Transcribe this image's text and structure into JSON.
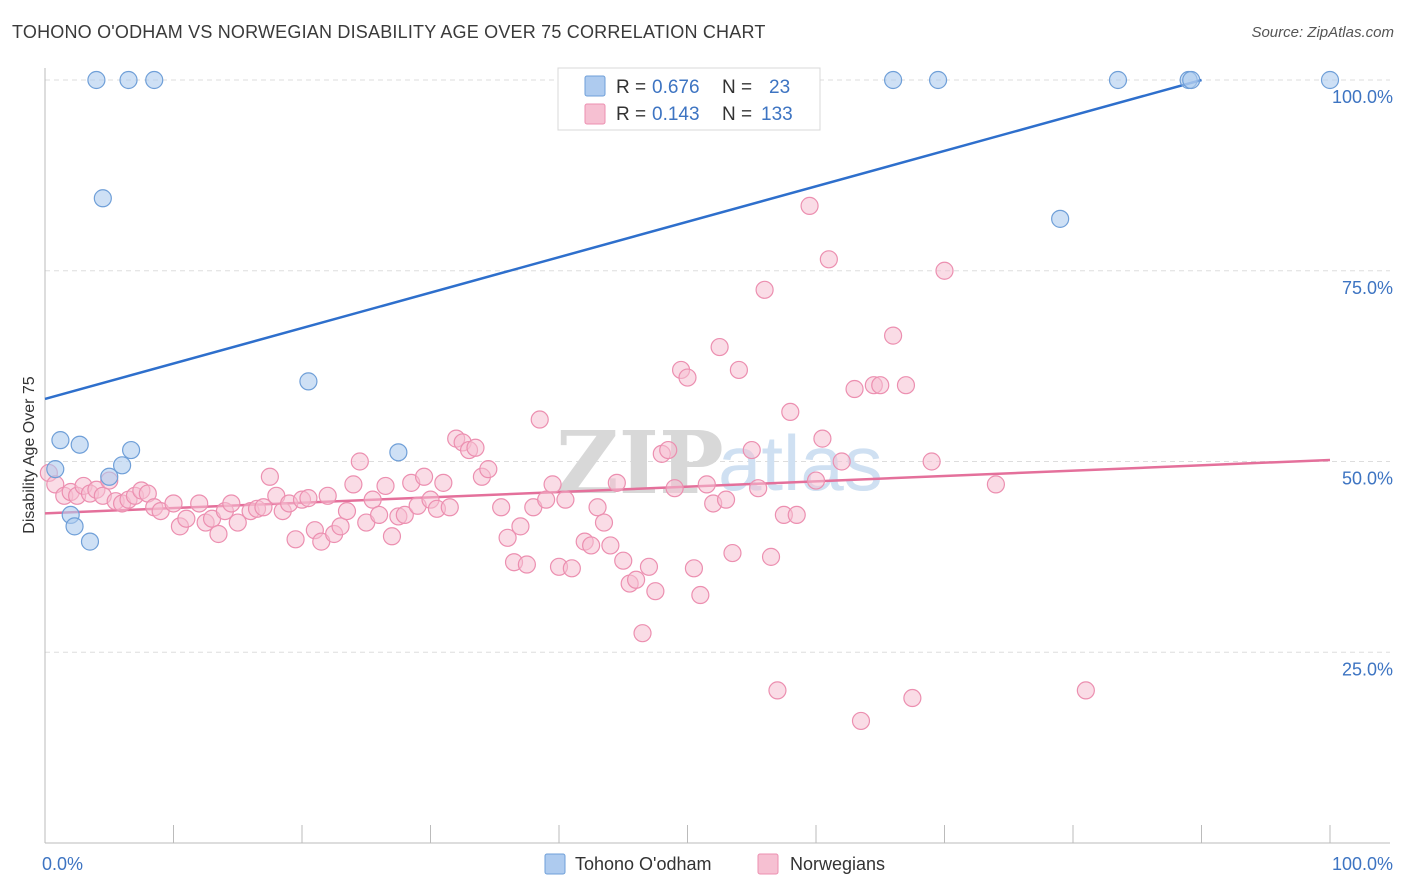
{
  "title": "TOHONO O'ODHAM VS NORWEGIAN DISABILITY AGE OVER 75 CORRELATION CHART",
  "source": "Source: ZipAtlas.com",
  "watermark": {
    "zip": "ZIP",
    "atlas": "atlas"
  },
  "legend": {
    "r_label": "R =",
    "n_label": "N =",
    "rows": [
      {
        "r": "0.676",
        "n": "23"
      },
      {
        "r": "0.143",
        "n": "133"
      }
    ]
  },
  "bottom_legend": [
    "Tohono O'odham",
    "Norwegians"
  ],
  "colors": {
    "blue_fill": "#aecbef",
    "blue_stroke": "#6f9fd8",
    "blue_line": "#2e6fcc",
    "pink_fill": "#f6c0d2",
    "pink_stroke": "#ec8fb0",
    "pink_line": "#e4709b",
    "tick_label": "#3d74c2",
    "grid": "#dddddd"
  },
  "chart_data": {
    "type": "scatter",
    "title": "TOHONO O'ODHAM VS NORWEGIAN DISABILITY AGE OVER 75 CORRELATION CHART",
    "xlabel": "",
    "ylabel": "Disability Age Over 75",
    "xlim": [
      0,
      100
    ],
    "ylim": [
      0,
      100
    ],
    "x_tick_labels": [
      "0.0%",
      "100.0%"
    ],
    "y_tick_labels": [
      "25.0%",
      "50.0%",
      "75.0%",
      "100.0%"
    ],
    "y_ticks": [
      25,
      50,
      75,
      100
    ],
    "grid": true,
    "legend_position": "top-center",
    "series": [
      {
        "name": "Tohono O'odham",
        "R": 0.676,
        "N": 23,
        "trend": [
          [
            0,
            58.2
          ],
          [
            90,
            100
          ]
        ],
        "points": [
          [
            4,
            100
          ],
          [
            6.5,
            100
          ],
          [
            8.5,
            100
          ],
          [
            66,
            100
          ],
          [
            69.5,
            100
          ],
          [
            83.5,
            100
          ],
          [
            89,
            100
          ],
          [
            89.2,
            100
          ],
          [
            100,
            100
          ],
          [
            4.5,
            84.5
          ],
          [
            79,
            81.8
          ],
          [
            20.5,
            60.5
          ],
          [
            1.2,
            52.8
          ],
          [
            2.7,
            52.2
          ],
          [
            6.7,
            51.5
          ],
          [
            27.5,
            51.2
          ],
          [
            0.8,
            49.0
          ],
          [
            6,
            49.5
          ],
          [
            5,
            48
          ],
          [
            2,
            43
          ],
          [
            2.3,
            41.5
          ],
          [
            3.5,
            39.5
          ]
        ]
      },
      {
        "name": "Norwegians",
        "R": 0.143,
        "N": 133,
        "trend": [
          [
            0,
            43.2
          ],
          [
            100,
            50.2
          ]
        ],
        "points": [
          [
            0.3,
            48.5
          ],
          [
            0.8,
            47
          ],
          [
            1.5,
            45.5
          ],
          [
            2,
            46
          ],
          [
            2.5,
            45.5
          ],
          [
            3,
            46.8
          ],
          [
            3.5,
            45.8
          ],
          [
            4,
            46.3
          ],
          [
            4.5,
            45.5
          ],
          [
            5,
            47.5
          ],
          [
            5.5,
            44.8
          ],
          [
            6,
            44.5
          ],
          [
            6.5,
            45
          ],
          [
            7,
            45.5
          ],
          [
            7.5,
            46.2
          ],
          [
            8,
            45.8
          ],
          [
            8.5,
            44
          ],
          [
            9,
            43.5
          ],
          [
            10,
            44.5
          ],
          [
            10.5,
            41.5
          ],
          [
            11,
            42.5
          ],
          [
            12,
            44.5
          ],
          [
            12.5,
            42
          ],
          [
            13,
            42.5
          ],
          [
            13.5,
            40.5
          ],
          [
            14,
            43.5
          ],
          [
            14.5,
            44.5
          ],
          [
            15,
            42
          ],
          [
            16,
            43.5
          ],
          [
            16.5,
            43.8
          ],
          [
            17,
            44
          ],
          [
            17.5,
            48
          ],
          [
            18,
            45.5
          ],
          [
            18.5,
            43.5
          ],
          [
            19,
            44.5
          ],
          [
            19.5,
            39.8
          ],
          [
            20,
            45
          ],
          [
            20.5,
            45.2
          ],
          [
            21,
            41
          ],
          [
            21.5,
            39.5
          ],
          [
            22,
            45.5
          ],
          [
            22.5,
            40.5
          ],
          [
            23,
            41.5
          ],
          [
            23.5,
            43.5
          ],
          [
            24,
            47
          ],
          [
            24.5,
            50
          ],
          [
            25,
            42
          ],
          [
            25.5,
            45
          ],
          [
            26,
            43
          ],
          [
            26.5,
            46.8
          ],
          [
            27,
            40.2
          ],
          [
            27.5,
            42.8
          ],
          [
            28,
            43
          ],
          [
            28.5,
            47.2
          ],
          [
            29,
            44.2
          ],
          [
            29.5,
            48
          ],
          [
            30,
            45
          ],
          [
            30.5,
            43.8
          ],
          [
            31,
            47.2
          ],
          [
            31.5,
            44
          ],
          [
            32,
            53
          ],
          [
            32.5,
            52.5
          ],
          [
            33,
            51.5
          ],
          [
            33.5,
            51.8
          ],
          [
            34,
            48
          ],
          [
            34.5,
            49
          ],
          [
            35.5,
            44
          ],
          [
            36,
            40
          ],
          [
            36.5,
            36.8
          ],
          [
            37,
            41.5
          ],
          [
            37.5,
            36.5
          ],
          [
            38,
            44
          ],
          [
            38.5,
            55.5
          ],
          [
            39,
            45
          ],
          [
            39.5,
            47
          ],
          [
            40,
            36.2
          ],
          [
            40.5,
            45
          ],
          [
            41,
            36
          ],
          [
            42,
            39.5
          ],
          [
            42.5,
            39
          ],
          [
            43,
            44
          ],
          [
            43.5,
            42
          ],
          [
            44,
            39
          ],
          [
            44.5,
            47.2
          ],
          [
            45,
            37
          ],
          [
            45.5,
            34
          ],
          [
            46,
            34.5
          ],
          [
            46.5,
            27.5
          ],
          [
            47,
            36.2
          ],
          [
            47.5,
            33
          ],
          [
            48,
            51
          ],
          [
            48.5,
            51.5
          ],
          [
            49,
            46.5
          ],
          [
            49.5,
            62
          ],
          [
            50,
            61
          ],
          [
            50.5,
            36
          ],
          [
            51,
            32.5
          ],
          [
            51.5,
            47
          ],
          [
            52,
            44.5
          ],
          [
            52.5,
            65
          ],
          [
            53,
            45
          ],
          [
            53.5,
            38
          ],
          [
            54,
            62
          ],
          [
            55,
            51.5
          ],
          [
            55.5,
            46.5
          ],
          [
            56,
            72.5
          ],
          [
            56.5,
            37.5
          ],
          [
            57,
            20
          ],
          [
            57.5,
            43
          ],
          [
            58,
            56.5
          ],
          [
            58.5,
            43
          ],
          [
            59.5,
            83.5
          ],
          [
            60,
            47.5
          ],
          [
            60.5,
            53
          ],
          [
            61,
            76.5
          ],
          [
            62,
            50
          ],
          [
            63,
            59.5
          ],
          [
            63.5,
            16
          ],
          [
            64.5,
            60
          ],
          [
            65,
            60
          ],
          [
            66,
            66.5
          ],
          [
            67,
            60
          ],
          [
            67.5,
            19
          ],
          [
            69,
            50
          ],
          [
            70,
            75
          ],
          [
            74,
            47
          ],
          [
            81,
            20
          ]
        ]
      }
    ]
  }
}
